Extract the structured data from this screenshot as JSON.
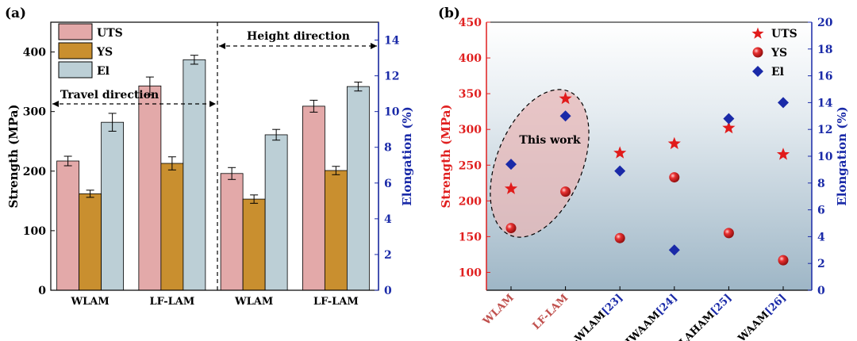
{
  "chart_data": [
    {
      "panel": "(a)",
      "type": "bar",
      "categories": [
        "WLAM",
        "LF-LAM",
        "WLAM",
        "LF-LAM"
      ],
      "groups": [
        {
          "label": "Travel direction",
          "categories": [
            0,
            1
          ]
        },
        {
          "label": "Height direction",
          "categories": [
            2,
            3
          ]
        }
      ],
      "series": [
        {
          "name": "UTS",
          "axis": "left",
          "values": [
            217,
            343,
            196,
            309
          ],
          "errors": [
            8,
            15,
            10,
            10
          ],
          "color": "#e3a9a9"
        },
        {
          "name": "YS",
          "axis": "left",
          "values": [
            162,
            213,
            153,
            201
          ],
          "errors": [
            6,
            11,
            7,
            7
          ],
          "color": "#c98f2f"
        },
        {
          "name": "El",
          "axis": "right",
          "values": [
            9.4,
            12.9,
            8.7,
            11.4
          ],
          "errors": [
            0.5,
            0.25,
            0.3,
            0.25
          ],
          "color": "#bccfd6"
        }
      ],
      "ylabel": "Strength (MPa)",
      "y2label": "Elongation (%)",
      "ylim": [
        0,
        450
      ],
      "y2lim": [
        0,
        15
      ],
      "yticks": [
        0,
        100,
        200,
        300,
        400
      ],
      "y2ticks": [
        0,
        2,
        4,
        6,
        8,
        10,
        12,
        14
      ],
      "legend_position": "top-left"
    },
    {
      "panel": "(b)",
      "type": "scatter",
      "categories": [
        "WLAM",
        "LF-LAM",
        "O-WLAM",
        "HWAAM",
        "LAHAM",
        "WAAM"
      ],
      "category_refs": [
        "",
        "",
        "[23]",
        "[24]",
        "[25]",
        "[26]"
      ],
      "highlight_categories": [
        0,
        1
      ],
      "series": [
        {
          "name": "UTS",
          "axis": "left",
          "marker": "star",
          "values": [
            217,
            343,
            267,
            280,
            302,
            265
          ],
          "color": "#e11b1b"
        },
        {
          "name": "YS",
          "axis": "left",
          "marker": "sphere",
          "values": [
            162,
            213,
            148,
            233,
            155,
            117
          ],
          "color": "#e11b1b"
        },
        {
          "name": "El",
          "axis": "right",
          "marker": "diamond",
          "values": [
            9.4,
            13.0,
            8.9,
            3.0,
            12.8,
            14.0
          ],
          "color": "#1a2aa8"
        }
      ],
      "ylabel": "Strength (MPa)",
      "y2label": "Elongation (%)",
      "ylim": [
        75,
        450
      ],
      "y2lim": [
        0,
        20
      ],
      "yticks": [
        100,
        150,
        200,
        250,
        300,
        350,
        400,
        450
      ],
      "y2ticks": [
        0,
        2,
        4,
        6,
        8,
        10,
        12,
        14,
        16,
        18,
        20
      ],
      "annotation": "This work",
      "legend_position": "top-right"
    }
  ],
  "colors": {
    "left_axis_b": "#e01f1f",
    "right_axis": "#1a2aa8",
    "category_highlight": "#c0504d"
  }
}
